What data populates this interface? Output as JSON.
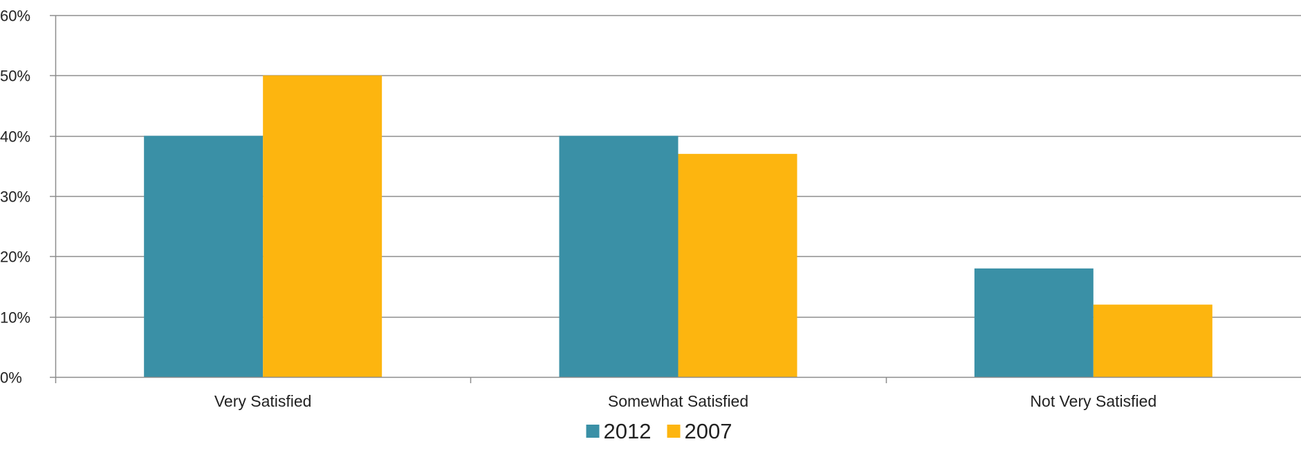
{
  "chart_data": {
    "type": "bar",
    "categories": [
      "Very Satisfied",
      "Somewhat Satisfied",
      "Not Very Satisfied"
    ],
    "series": [
      {
        "name": "2012",
        "values": [
          40,
          40,
          18
        ],
        "color": "#3A90A6"
      },
      {
        "name": "2007",
        "values": [
          50,
          37,
          12
        ],
        "color": "#FDB50F"
      }
    ],
    "ylim": [
      0,
      60
    ],
    "yticks": [
      0,
      10,
      20,
      30,
      40,
      50,
      60
    ],
    "ytick_labels": [
      "0%",
      "10%",
      "20%",
      "30%",
      "40%",
      "50%",
      "60%"
    ],
    "grid": true,
    "legend_position": "bottom",
    "title": "",
    "xlabel": "",
    "ylabel": ""
  }
}
